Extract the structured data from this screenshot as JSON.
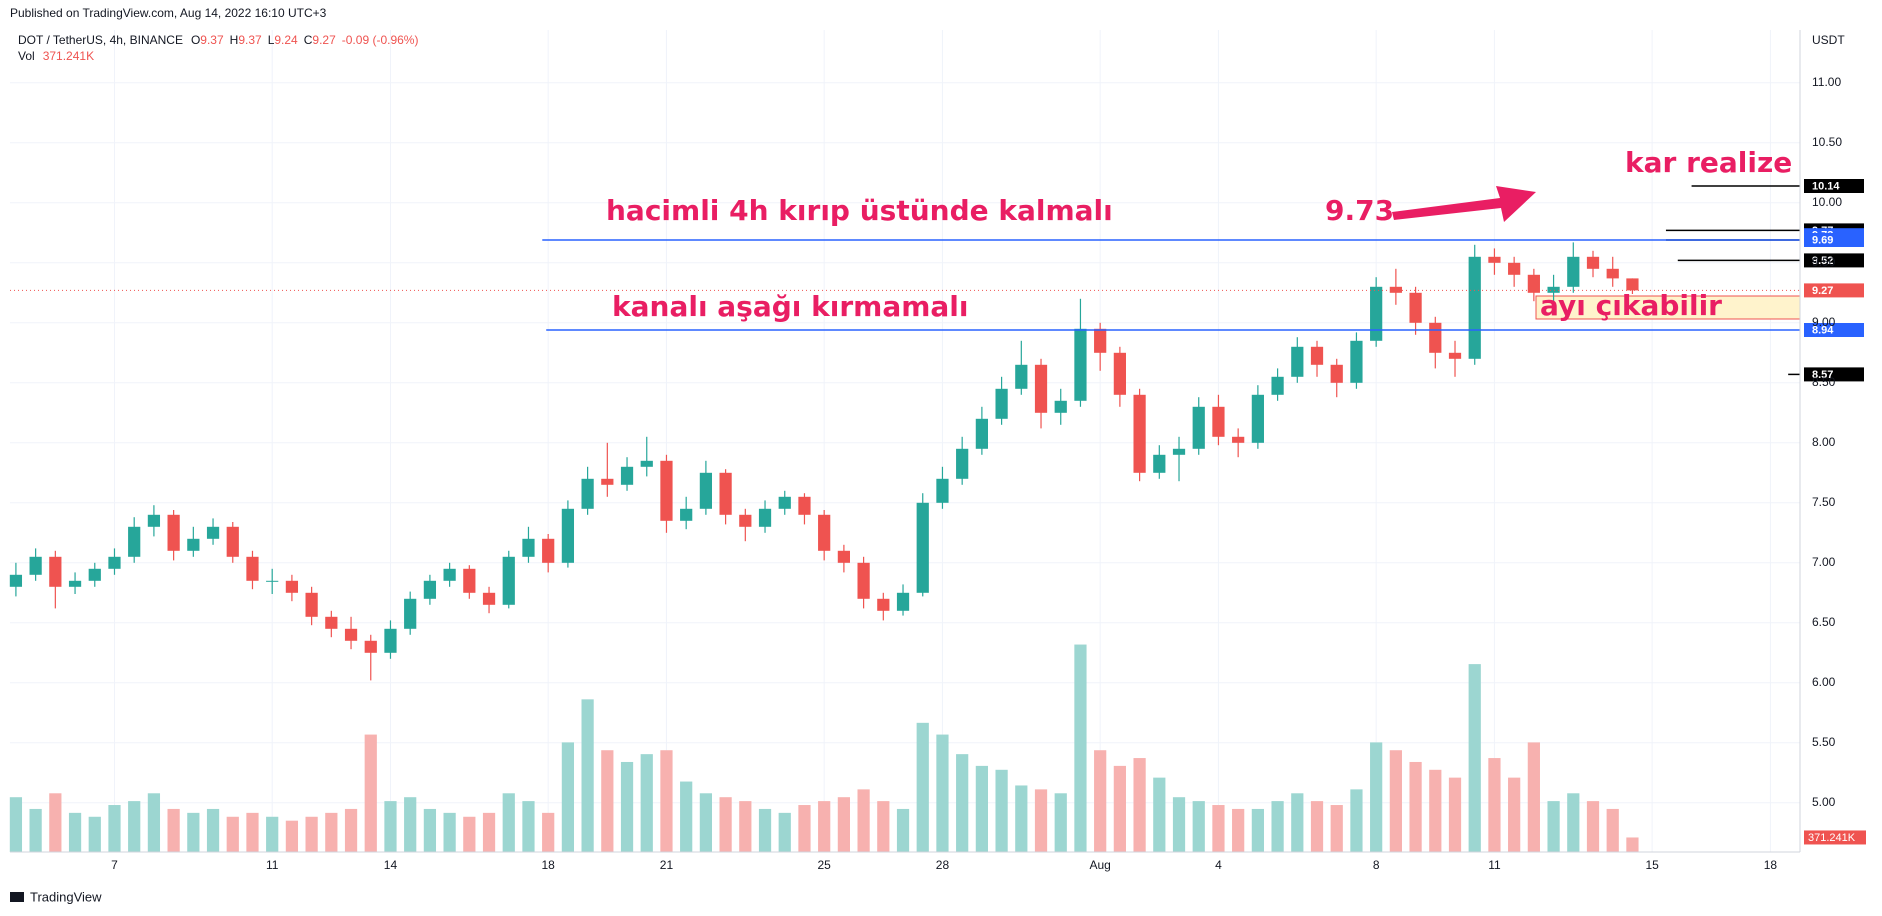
{
  "header": {
    "published": "Published on TradingView.com, Aug 14, 2022 16:10 UTC+3",
    "symbol": "DOT / TetherUS, 4h, BINANCE",
    "ohlc_labels": [
      "O",
      "H",
      "L",
      "C"
    ],
    "ohlc": [
      9.37,
      9.37,
      9.24,
      9.27
    ],
    "change_label": "-0.09 (-0.96%)",
    "volume_title": "Vol",
    "currency": "USDT"
  },
  "footer": {
    "brand": "TradingView"
  },
  "chart_data": {
    "type": "candlestick",
    "up_color": "#26a69a",
    "down_color": "#ef5350",
    "up_volume_color": "#9cd6d1",
    "down_volume_color": "#f7b1af",
    "grid": true,
    "categories": [
      null,
      null,
      null,
      null,
      null,
      null,
      null,
      null,
      null,
      null,
      null,
      null,
      null,
      null,
      null,
      null,
      null,
      null,
      null,
      null,
      null,
      null,
      null,
      null,
      null,
      null,
      null,
      null,
      null,
      null,
      null,
      null,
      null,
      null,
      null,
      null,
      null,
      null,
      null,
      null,
      null,
      null,
      null,
      null,
      null,
      null,
      null,
      null,
      null,
      null,
      null,
      null,
      null,
      null,
      null,
      null,
      null,
      null,
      null,
      null,
      null,
      null,
      null,
      null,
      null,
      null,
      null,
      null,
      null,
      null,
      null,
      null,
      null,
      null,
      null,
      null,
      null,
      null,
      null,
      null,
      null,
      null,
      null
    ],
    "open": [
      6.8,
      6.9,
      7.05,
      6.8,
      6.85,
      6.95,
      7.05,
      7.3,
      7.4,
      7.1,
      7.2,
      7.3,
      7.05,
      6.85,
      6.85,
      6.75,
      6.55,
      6.45,
      6.35,
      6.25,
      6.45,
      6.7,
      6.85,
      6.95,
      6.75,
      6.65,
      7.05,
      7.2,
      7.0,
      7.45,
      7.7,
      7.65,
      7.8,
      7.85,
      7.35,
      7.45,
      7.75,
      7.4,
      7.3,
      7.45,
      7.55,
      7.4,
      7.1,
      7.0,
      6.7,
      6.6,
      6.75,
      7.5,
      7.7,
      7.95,
      8.2,
      8.45,
      8.65,
      8.25,
      8.35,
      8.95,
      8.75,
      8.4,
      7.75,
      7.9,
      7.95,
      8.3,
      8.05,
      8.0,
      8.4,
      8.55,
      8.8,
      8.65,
      8.5,
      8.85,
      9.3,
      9.25,
      9.0,
      8.75,
      8.7,
      9.55,
      9.5,
      9.4,
      9.25,
      9.3,
      9.55,
      9.45,
      9.37
    ],
    "high": [
      7.0,
      7.12,
      7.1,
      6.92,
      7.0,
      7.12,
      7.38,
      7.48,
      7.44,
      7.3,
      7.37,
      7.34,
      7.1,
      6.95,
      6.9,
      6.8,
      6.6,
      6.55,
      6.4,
      6.52,
      6.76,
      6.9,
      7.0,
      6.98,
      6.8,
      7.1,
      7.3,
      7.24,
      7.52,
      7.8,
      8.0,
      7.88,
      8.05,
      7.9,
      7.55,
      7.85,
      7.78,
      7.45,
      7.52,
      7.6,
      7.58,
      7.44,
      7.15,
      7.05,
      6.75,
      6.82,
      7.58,
      7.8,
      8.05,
      8.3,
      8.55,
      8.85,
      8.7,
      8.45,
      9.2,
      9.0,
      8.8,
      8.45,
      7.98,
      8.05,
      8.38,
      8.4,
      8.12,
      8.48,
      8.62,
      8.88,
      8.85,
      8.7,
      8.92,
      9.38,
      9.45,
      9.3,
      9.05,
      8.85,
      9.65,
      9.62,
      9.55,
      9.45,
      9.4,
      9.67,
      9.6,
      9.55,
      9.37
    ],
    "low": [
      6.72,
      6.85,
      6.62,
      6.74,
      6.8,
      6.9,
      7.0,
      7.22,
      7.02,
      7.05,
      7.15,
      7.0,
      6.78,
      6.74,
      6.68,
      6.48,
      6.38,
      6.28,
      6.02,
      6.2,
      6.4,
      6.65,
      6.8,
      6.7,
      6.58,
      6.62,
      7.0,
      6.92,
      6.96,
      7.4,
      7.55,
      7.6,
      7.72,
      7.25,
      7.28,
      7.4,
      7.32,
      7.18,
      7.25,
      7.4,
      7.32,
      7.02,
      6.92,
      6.62,
      6.52,
      6.56,
      6.72,
      7.45,
      7.65,
      7.9,
      8.15,
      8.4,
      8.12,
      8.15,
      8.3,
      8.6,
      8.3,
      7.68,
      7.7,
      7.68,
      7.9,
      7.98,
      7.88,
      7.95,
      8.35,
      8.5,
      8.55,
      8.38,
      8.45,
      8.8,
      9.15,
      8.9,
      8.62,
      8.55,
      8.65,
      9.4,
      9.3,
      9.18,
      9.18,
      9.25,
      9.38,
      9.3,
      9.24
    ],
    "close": [
      6.9,
      7.05,
      6.8,
      6.85,
      6.95,
      7.05,
      7.3,
      7.4,
      7.1,
      7.2,
      7.3,
      7.05,
      6.85,
      6.85,
      6.75,
      6.55,
      6.45,
      6.35,
      6.25,
      6.45,
      6.7,
      6.85,
      6.95,
      6.75,
      6.65,
      7.05,
      7.2,
      7.0,
      7.45,
      7.7,
      7.65,
      7.8,
      7.85,
      7.35,
      7.45,
      7.75,
      7.4,
      7.3,
      7.45,
      7.55,
      7.4,
      7.1,
      7.0,
      6.7,
      6.6,
      6.75,
      7.5,
      7.7,
      7.95,
      8.2,
      8.45,
      8.65,
      8.25,
      8.35,
      8.95,
      8.75,
      8.4,
      7.75,
      7.9,
      7.95,
      8.3,
      8.05,
      8.0,
      8.4,
      8.55,
      8.8,
      8.65,
      8.5,
      8.85,
      9.3,
      9.25,
      9.0,
      8.75,
      8.7,
      9.55,
      9.5,
      9.4,
      9.25,
      9.3,
      9.55,
      9.45,
      9.37,
      9.27
    ],
    "volume": [
      1400,
      1100,
      1500,
      1000,
      900,
      1200,
      1300,
      1500,
      1100,
      1000,
      1100,
      900,
      1000,
      900,
      800,
      900,
      1000,
      1100,
      3000,
      1300,
      1400,
      1100,
      1000,
      900,
      1000,
      1500,
      1300,
      1000,
      2800,
      3900,
      2600,
      2300,
      2500,
      2600,
      1800,
      1500,
      1400,
      1300,
      1100,
      1000,
      1200,
      1300,
      1400,
      1600,
      1300,
      1100,
      3300,
      3000,
      2500,
      2200,
      2100,
      1700,
      1600,
      1500,
      5300,
      2600,
      2200,
      2400,
      1900,
      1400,
      1300,
      1200,
      1100,
      1100,
      1300,
      1500,
      1300,
      1200,
      1600,
      2800,
      2600,
      2300,
      2100,
      1900,
      4800,
      2400,
      1900,
      2800,
      1300,
      1500,
      1300,
      1100,
      371.241
    ],
    "last_volume_label": "371.241K",
    "volume_lim": [
      0,
      21000
    ],
    "xlim": [
      -0.3,
      90.5
    ],
    "xticks": [
      {
        "value": 5,
        "label": "7"
      },
      {
        "value": 13,
        "label": "11"
      },
      {
        "value": 19,
        "label": "14"
      },
      {
        "value": 27,
        "label": "18"
      },
      {
        "value": 33,
        "label": "21"
      },
      {
        "value": 41,
        "label": "25"
      },
      {
        "value": 47,
        "label": "28"
      },
      {
        "value": 55,
        "label": "Aug"
      },
      {
        "value": 61,
        "label": "4"
      },
      {
        "value": 69,
        "label": "8"
      },
      {
        "value": 75,
        "label": "11"
      },
      {
        "value": 83,
        "label": "15"
      },
      {
        "value": 89,
        "label": "18"
      }
    ],
    "ylim": [
      4.59,
      11.44
    ],
    "yticks": [
      {
        "value": 5,
        "label": "5.00"
      },
      {
        "value": 5.5,
        "label": "5.50"
      },
      {
        "value": 6,
        "label": "6.00"
      },
      {
        "value": 6.5,
        "label": "6.50"
      },
      {
        "value": 7,
        "label": "7.00"
      },
      {
        "value": 7.5,
        "label": "7.50"
      },
      {
        "value": 8,
        "label": "8.00"
      },
      {
        "value": 8.5,
        "label": "8.50"
      },
      {
        "value": 9,
        "label": "9.00"
      },
      {
        "value": 9.5,
        "label": "9.50"
      },
      {
        "value": 10,
        "label": "10.00"
      },
      {
        "value": 10.5,
        "label": "10.50"
      },
      {
        "value": 11,
        "label": "11.00"
      }
    ],
    "levels": [
      {
        "value": 10.14,
        "color": "#000000",
        "from": 85.0
      },
      {
        "value": 9.77,
        "color": "#000000",
        "from": 83.7
      },
      {
        "value": 9.73,
        "color": "#2962ff"
      },
      {
        "value": 9.69,
        "color": "#000000",
        "from": 83.7
      },
      {
        "value": 9.69,
        "color": "#2962ff",
        "from": 26.7
      },
      {
        "value": 9.52,
        "color": "#000000",
        "from": 84.3
      },
      {
        "value": 9.27,
        "color": "#ef5350",
        "from": -0.3,
        "dotted": true
      },
      {
        "value": 8.94,
        "color": "#2962ff",
        "from": 26.9
      },
      {
        "value": 8.57,
        "color": "#000000",
        "from": 89.9
      }
    ],
    "annotations": [
      "hacimli 4h kırıp üstünde kalmalı",
      "kanalı aşağı kırmamalı",
      "9.73",
      "kar realize",
      "ayı çıkabilir"
    ]
  }
}
